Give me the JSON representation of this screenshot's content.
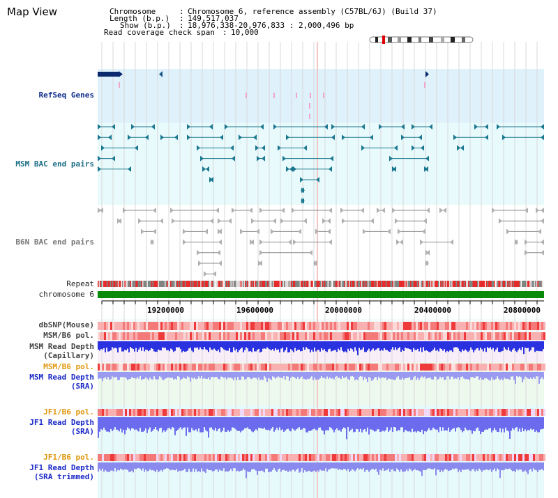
{
  "page": {
    "title": "Map View"
  },
  "info": {
    "chromosome_key": "Chromosome",
    "chromosome_val": "Chromosome 6, reference assembly (C57BL/6J) (Build 37)",
    "length_key": "Length (b.p.)",
    "length_val": "149,517,037",
    "show_key": "Show (b.p.)",
    "show_val": "18,976,338-20,976,833 : 2,000,496 bp",
    "coverage_key": "Read coverage check span",
    "coverage_val": "10,000"
  },
  "tracks": {
    "refseq": "RefSeq Genes",
    "msm_bac": "MSM BAC end pairs",
    "b6n_bac": "B6N BAC end pairs",
    "repeat": "Repeat",
    "chromosome": "chromosome 6",
    "dbsnp": "dbSNP(Mouse)",
    "msm_b6_pol": "MSM/B6 pol.",
    "msm_read_depth_1": "MSM Read Depth",
    "msm_read_depth_1b": "(Capillary)",
    "msm_b6_pol_2": "MSM/B6 pol.",
    "msm_read_depth_2": "MSM Read Depth",
    "msm_read_depth_2b": "(SRA)",
    "jf1_b6_pol": "JF1/B6 pol.",
    "jf1_read_depth": "JF1 Read Depth",
    "jf1_read_depth_b": "(SRA)",
    "jf1_b6_pol_2": "JF1/B6 pol.",
    "jf1_read_depth_2": "JF1 Read Depth",
    "jf1_read_depth_2b": "(SRA trimmed)"
  },
  "axis": {
    "ticks": [
      "19200000",
      "19600000",
      "20000000",
      "20400000",
      "20800000"
    ]
  },
  "colors": {
    "refseq_bg": "#dff1fb",
    "bac_bg": "#e8fafc",
    "track_bg": "#ecfcfa",
    "msm_glyph": "#1b7890",
    "b6n_glyph": "#888888",
    "chromosome_bar": "#0a8a0a",
    "polymorphism_red": "#e8383a",
    "depth_blue": "#2a32e0",
    "depth_light": "#8888ee"
  }
}
